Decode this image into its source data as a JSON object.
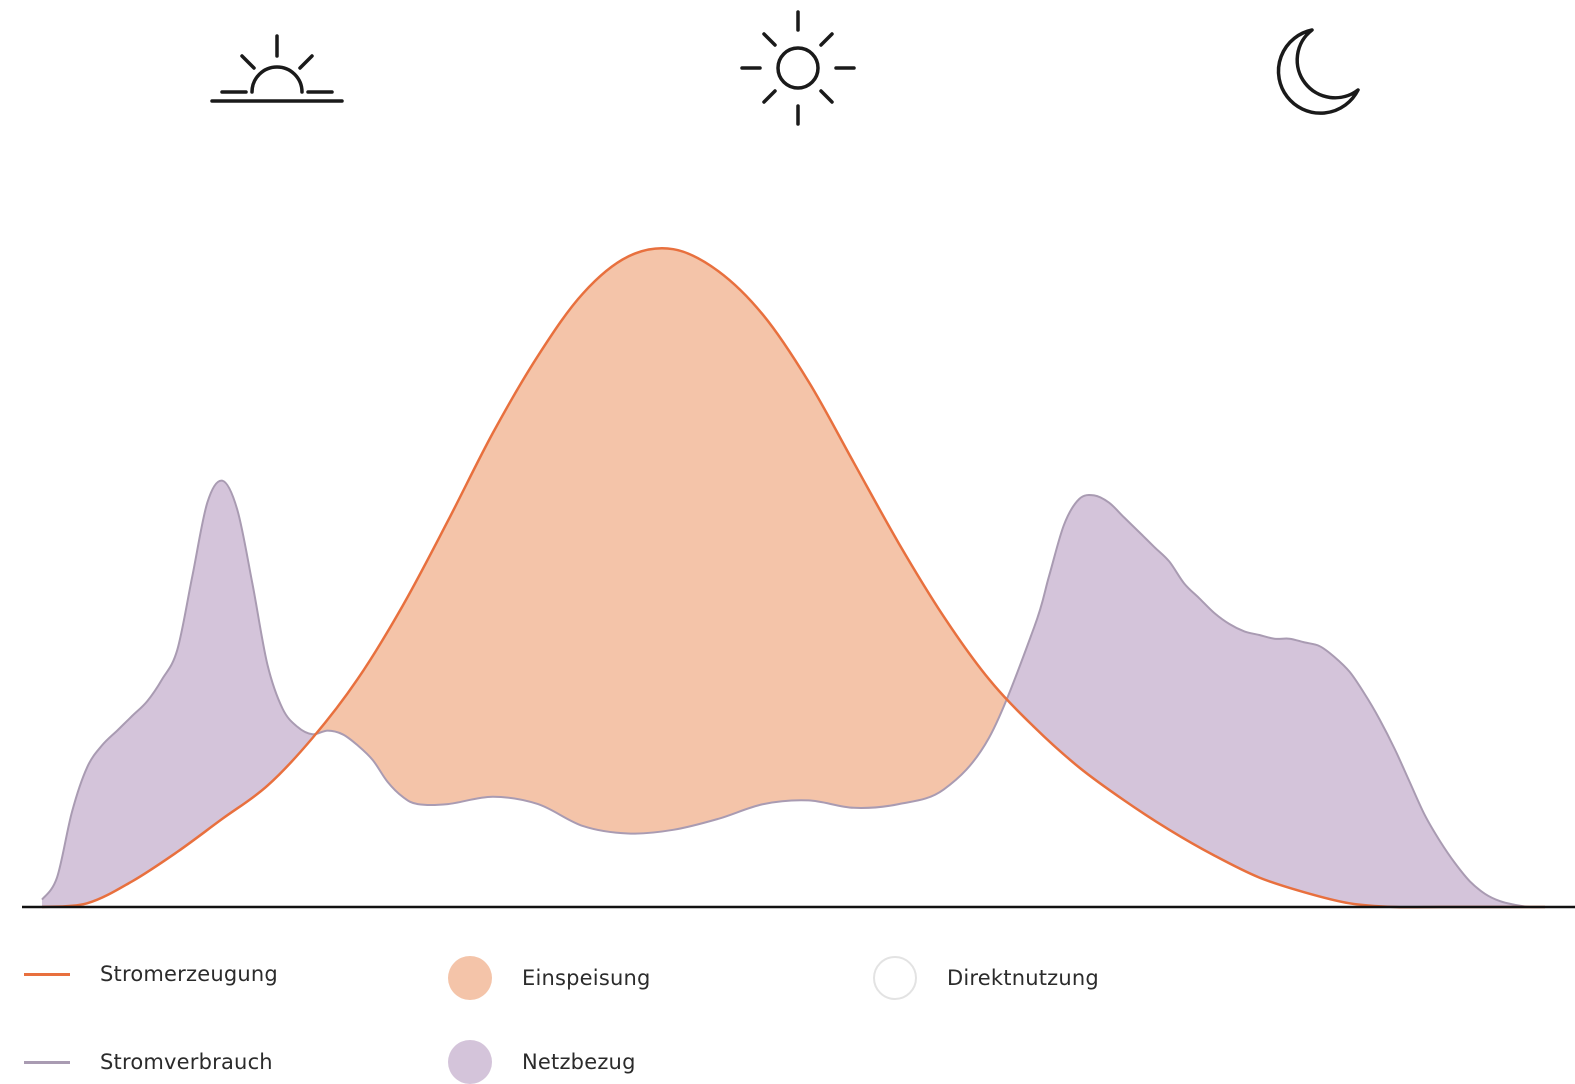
{
  "icons": [
    "sunrise-icon",
    "sun-icon",
    "moon-icon"
  ],
  "colors": {
    "generation_line": "#e8703e",
    "feed_in_fill": "#f4c4a9",
    "grid_fill": "#d4c4da",
    "consumption_line": "#a99bb2",
    "direct_use_border": "#e3e3e3",
    "axis": "#111111"
  },
  "chart_data": {
    "type": "area",
    "xlabel": "",
    "ylabel": "",
    "grid": false,
    "legend_placement": "bottom",
    "series": [
      {
        "name": "Stromerzeugung",
        "kind": "line",
        "x": [
          0,
          3,
          6,
          9,
          12,
          15,
          18,
          21,
          24,
          27,
          30,
          33,
          36,
          39,
          42,
          45,
          48,
          51,
          54,
          57,
          60,
          63,
          66,
          69,
          72,
          75,
          78,
          81,
          84,
          87,
          90,
          93,
          96,
          99,
          100
        ],
        "values": [
          0,
          0.5,
          3.5,
          7.5,
          12,
          16.5,
          23,
          31,
          41,
          52.5,
          64.5,
          75,
          83.5,
          88.5,
          89.5,
          86.5,
          80.5,
          71.5,
          60.5,
          49.5,
          39.5,
          31,
          24.5,
          19,
          14.5,
          10.5,
          7,
          4,
          2,
          0.5,
          0,
          0,
          0,
          0,
          0
        ]
      },
      {
        "name": "Stromverbrauch",
        "kind": "line",
        "x": [
          0,
          1,
          2,
          3,
          4,
          5,
          6,
          7,
          8,
          9,
          10,
          11,
          12,
          13,
          14,
          15,
          16,
          17,
          18,
          19,
          20,
          21,
          22,
          23,
          24,
          25,
          27,
          30,
          33,
          36,
          39,
          42,
          45,
          48,
          51,
          54,
          57,
          60,
          63,
          66,
          67,
          68,
          69,
          70,
          71,
          72,
          73,
          74,
          75,
          76,
          77,
          78,
          79,
          80,
          81,
          82,
          83,
          84,
          85,
          86,
          87,
          88,
          89,
          90,
          91,
          92,
          93,
          94,
          95,
          96,
          97,
          98,
          99,
          100
        ],
        "values": [
          1,
          4,
          13,
          19,
          22,
          24,
          26,
          28,
          31,
          35,
          45,
          55,
          58,
          54,
          44,
          33,
          27,
          24.5,
          23.5,
          24,
          23.5,
          22,
          20,
          17,
          15,
          14,
          14,
          15,
          14,
          11,
          10,
          10.5,
          12,
          14,
          14.5,
          13.5,
          14,
          16,
          23,
          38,
          45,
          52,
          55.5,
          56,
          55,
          53,
          51,
          49,
          47,
          44,
          42,
          40,
          38.5,
          37.5,
          37,
          36.5,
          36.5,
          36,
          35.5,
          34,
          32,
          29,
          25.5,
          21.5,
          17,
          12.5,
          9,
          6,
          3.5,
          1.8,
          0.8,
          0.3,
          0,
          0
        ]
      }
    ],
    "areas": [
      {
        "name": "Einspeisung",
        "meaning": "generation above consumption"
      },
      {
        "name": "Netzbezug",
        "meaning": "consumption above generation"
      },
      {
        "name": "Direktnutzung",
        "meaning": "overlap of generation and consumption"
      }
    ],
    "xlim": [
      0,
      100
    ],
    "ylim": [
      0,
      100
    ]
  },
  "legend": {
    "generation": "Stromerzeugung",
    "consumption": "Stromverbrauch",
    "feed_in": "Einspeisung",
    "grid": "Netzbezug",
    "direct_use": "Direktnutzung"
  }
}
